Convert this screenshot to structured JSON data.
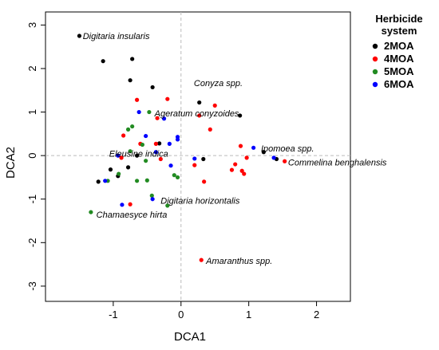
{
  "chart_data": {
    "type": "scatter",
    "title": "",
    "xlabel": "DCA1",
    "ylabel": "DCA2",
    "xlim": [
      -2.0,
      2.5
    ],
    "ylim": [
      -3.35,
      3.3
    ],
    "xticks": [
      -1,
      0,
      1,
      2
    ],
    "yticks": [
      -3,
      -2,
      -1,
      0,
      1,
      2,
      3
    ],
    "xtick_labels": [
      "-1",
      "0",
      "1",
      "2"
    ],
    "ytick_labels": [
      "-3",
      "-2",
      "-1",
      "0",
      "1",
      "2",
      "3"
    ],
    "reference_lines": {
      "x": 0,
      "y": 0,
      "style": "dashed"
    },
    "legend": {
      "title_line1": "Herbicide",
      "title_line2": "system",
      "placement": "right"
    },
    "series": [
      {
        "name": "2MOA",
        "color": "#000000",
        "points": [
          [
            -1.5,
            2.75
          ],
          [
            -1.15,
            2.17
          ],
          [
            -0.72,
            2.22
          ],
          [
            -0.75,
            1.73
          ],
          [
            -0.42,
            1.57
          ],
          [
            0.27,
            1.22
          ],
          [
            0.87,
            0.92
          ],
          [
            1.22,
            0.08
          ],
          [
            1.41,
            -0.08
          ],
          [
            0.33,
            -0.08
          ],
          [
            -0.32,
            0.28
          ],
          [
            -0.65,
            0.0
          ],
          [
            -0.78,
            -0.27
          ],
          [
            -0.93,
            -0.47
          ],
          [
            -1.04,
            -0.32
          ],
          [
            -1.22,
            -0.6
          ]
        ]
      },
      {
        "name": "4MOA",
        "color": "#ff0000",
        "points": [
          [
            -0.65,
            1.28
          ],
          [
            -0.2,
            1.3
          ],
          [
            0.5,
            1.15
          ],
          [
            0.27,
            0.92
          ],
          [
            0.43,
            0.6
          ],
          [
            0.88,
            0.22
          ],
          [
            0.97,
            -0.05
          ],
          [
            0.8,
            -0.2
          ],
          [
            0.9,
            -0.35
          ],
          [
            0.93,
            -0.42
          ],
          [
            0.75,
            -0.33
          ],
          [
            1.53,
            -0.13
          ],
          [
            0.34,
            -0.6
          ],
          [
            0.2,
            -0.22
          ],
          [
            -0.3,
            -0.08
          ],
          [
            -0.37,
            0.27
          ],
          [
            -0.6,
            0.27
          ],
          [
            -0.88,
            -0.05
          ],
          [
            -0.35,
            0.86
          ],
          [
            -0.85,
            0.46
          ],
          [
            -0.75,
            -1.12
          ],
          [
            0.3,
            -2.4
          ]
        ]
      },
      {
        "name": "5MOA",
        "color": "#228b22",
        "points": [
          [
            -0.72,
            0.67
          ],
          [
            -0.78,
            0.6
          ],
          [
            -0.47,
            1.0
          ],
          [
            -0.57,
            0.25
          ],
          [
            -0.75,
            0.1
          ],
          [
            -0.52,
            -0.12
          ],
          [
            -0.65,
            -0.58
          ],
          [
            -0.92,
            -0.42
          ],
          [
            -1.08,
            -0.58
          ],
          [
            -0.5,
            -0.57
          ],
          [
            -0.05,
            -0.5
          ],
          [
            -0.1,
            -0.45
          ],
          [
            -0.2,
            -1.15
          ],
          [
            -0.43,
            -0.92
          ],
          [
            -1.33,
            -1.3
          ]
        ]
      },
      {
        "name": "6MOA",
        "color": "#0000ff",
        "points": [
          [
            -0.62,
            1.0
          ],
          [
            -0.25,
            0.85
          ],
          [
            -0.05,
            0.43
          ],
          [
            -0.05,
            0.37
          ],
          [
            -0.52,
            0.45
          ],
          [
            -0.17,
            0.27
          ],
          [
            -0.37,
            0.08
          ],
          [
            -0.15,
            -0.23
          ],
          [
            0.2,
            -0.07
          ],
          [
            1.07,
            0.18
          ],
          [
            1.37,
            -0.05
          ],
          [
            -0.93,
            0.0
          ],
          [
            -1.12,
            -0.58
          ],
          [
            -0.87,
            -1.13
          ],
          [
            -0.42,
            -1.0
          ]
        ]
      }
    ],
    "annotations": [
      {
        "text": "Digitaria insularis",
        "x": -1.45,
        "y": 2.75
      },
      {
        "text": "Conyza spp.",
        "x": 0.19,
        "y": 1.67
      },
      {
        "text": "Ageratum conyzoides",
        "x": -0.39,
        "y": 0.97
      },
      {
        "text": "Ipomoea spp.",
        "x": 1.18,
        "y": 0.17
      },
      {
        "text": "Eleusine indica",
        "x": -1.06,
        "y": 0.05
      },
      {
        "text": "Commelina benghalensis",
        "x": 1.58,
        "y": -0.15
      },
      {
        "text": "Digitaria horizontalis",
        "x": -0.3,
        "y": -1.03
      },
      {
        "text": "Chamaesyce hirta",
        "x": -1.25,
        "y": -1.35
      },
      {
        "text": "Amaranthus spp.",
        "x": 0.37,
        "y": -2.42
      }
    ]
  }
}
